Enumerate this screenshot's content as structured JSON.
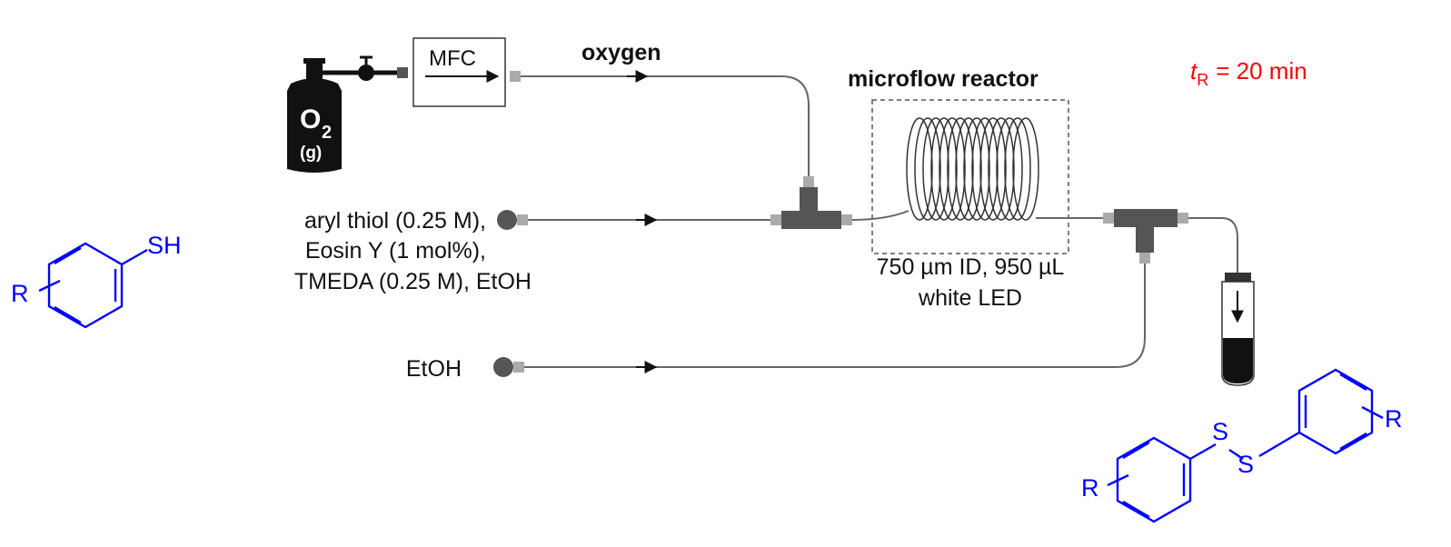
{
  "residence_time": {
    "symbol": "t",
    "subscript": "R",
    "value": "= 20 min",
    "color": "#ff0000"
  },
  "gas_feed": {
    "cylinder_label": "O",
    "cylinder_subscript": "2",
    "cylinder_phase": "(g)",
    "mfc_label": "MFC",
    "stream_label": "oxygen"
  },
  "reactor": {
    "title": "microflow reactor",
    "spec_line1": "750 µm ID, 950 µL",
    "spec_line2": "white LED"
  },
  "feeds": {
    "reagent_line1": "aryl thiol (0.25 M),",
    "reagent_line2": "Eosin Y (1 mol%),",
    "reagent_line3": "TMEDA (0.25 M), EtOH",
    "solvent": "EtOH"
  },
  "structures": {
    "color": "#0000ff",
    "reactant": {
      "thiol_group": "SH",
      "substituent": "R"
    },
    "product": {
      "sulfur1": "S",
      "sulfur2": "S",
      "substituent_left": "R",
      "substituent_right": "R"
    }
  }
}
